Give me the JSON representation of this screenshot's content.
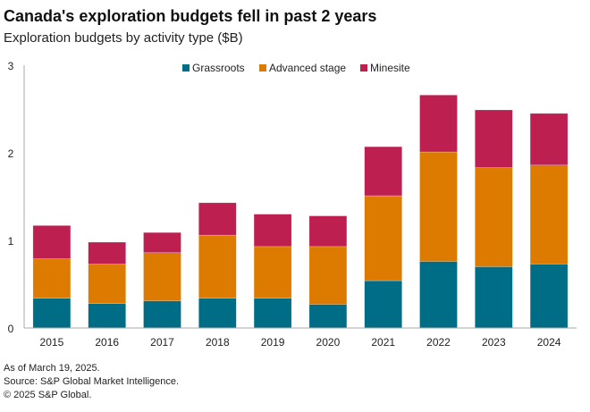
{
  "chart_data": {
    "type": "bar",
    "stacked": true,
    "title": "Canada's exploration budgets fell in past 2 years",
    "subtitle": "Exploration budgets by activity type ($B)",
    "xlabel": "",
    "ylabel": "",
    "ylim": [
      0,
      3
    ],
    "yticks": [
      "0",
      "1",
      "2",
      "3"
    ],
    "grid": false,
    "legend_position": "top",
    "categories": [
      "2015",
      "2016",
      "2017",
      "2018",
      "2019",
      "2020",
      "2021",
      "2022",
      "2023",
      "2024"
    ],
    "series": [
      {
        "name": "Grassroots",
        "color": "#006d87",
        "values": [
          0.34,
          0.28,
          0.31,
          0.34,
          0.34,
          0.27,
          0.54,
          0.76,
          0.7,
          0.73
        ]
      },
      {
        "name": "Advanced stage",
        "color": "#dd7a00",
        "values": [
          0.45,
          0.45,
          0.55,
          0.72,
          0.59,
          0.66,
          0.97,
          1.25,
          1.13,
          1.13
        ]
      },
      {
        "name": "Minesite",
        "color": "#bc1f50",
        "values": [
          0.38,
          0.25,
          0.23,
          0.37,
          0.37,
          0.35,
          0.56,
          0.65,
          0.66,
          0.59
        ]
      }
    ]
  },
  "notes": [
    "As of March 19, 2025.",
    "Source: S&P Global Market Intelligence.",
    "© 2025 S&P Global."
  ]
}
